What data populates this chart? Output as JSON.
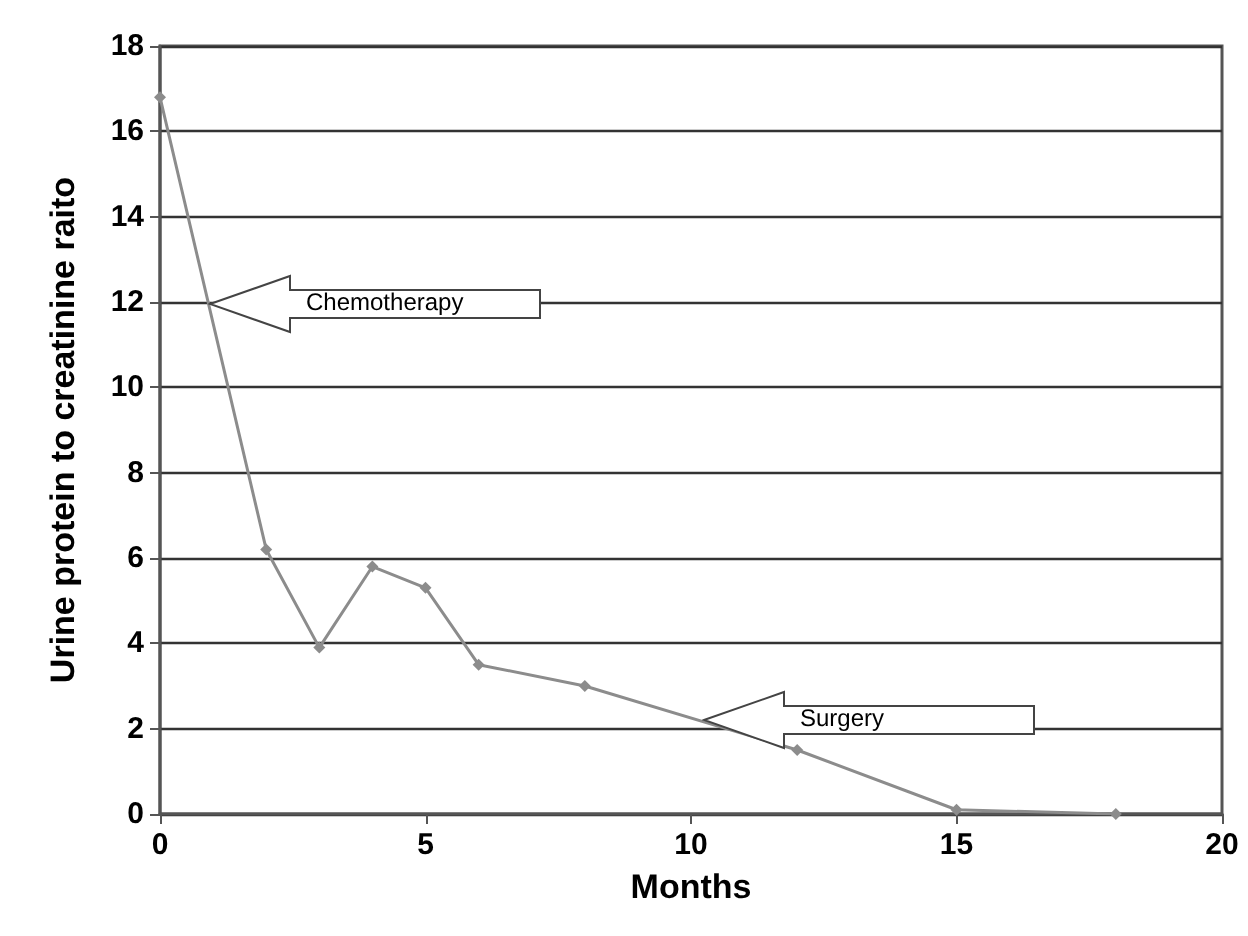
{
  "chart_data": {
    "type": "line",
    "xlabel": "Months",
    "ylabel": "Urine protein to creatinine raito",
    "x": [
      0,
      2,
      3,
      4,
      5,
      6,
      8,
      12,
      15,
      18
    ],
    "series": [
      {
        "color": "#8c8c8c",
        "values": [
          16.8,
          6.2,
          3.9,
          5.8,
          5.3,
          3.5,
          3.0,
          1.5,
          0.1,
          0.0
        ]
      }
    ],
    "xlim": [
      0,
      20
    ],
    "xticks": [
      0,
      5,
      10,
      15,
      20
    ],
    "ylim": [
      0,
      18
    ],
    "yticks": [
      0,
      2,
      4,
      6,
      8,
      10,
      12,
      14,
      16,
      18
    ],
    "grid": "y",
    "marker": "diamond",
    "line_style": "solid",
    "annotations": [
      "Chemotherapy",
      "Surgery"
    ]
  }
}
